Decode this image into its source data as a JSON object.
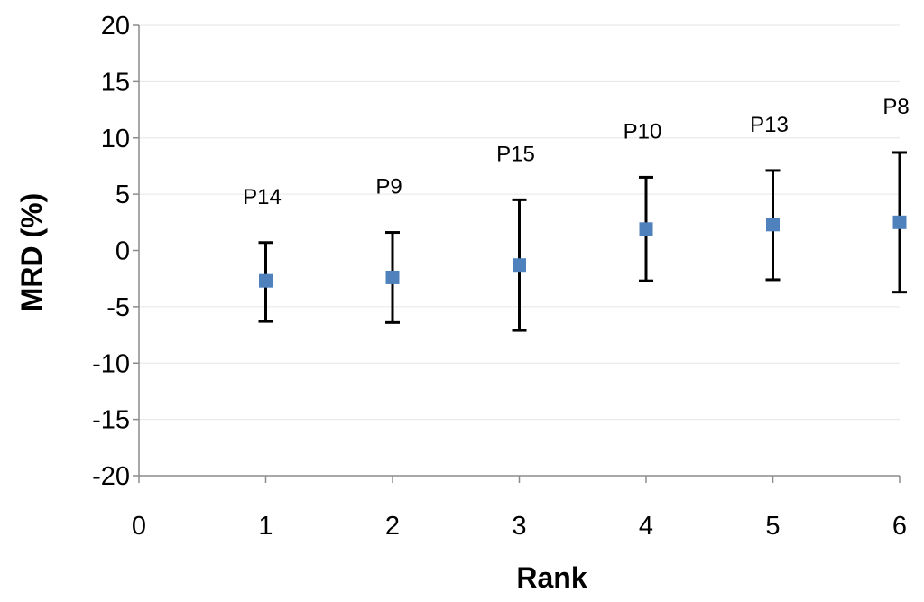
{
  "chart_data": {
    "type": "scatter",
    "title": "",
    "xlabel": "Rank",
    "ylabel": "MRD (%)",
    "xlim": [
      0,
      6
    ],
    "ylim": [
      -20,
      20
    ],
    "xticks": [
      0,
      1,
      2,
      3,
      4,
      5,
      6
    ],
    "yticks": [
      -20,
      -15,
      -10,
      -5,
      0,
      5,
      10,
      15,
      20
    ],
    "gridlines": "horizontal",
    "marker_color": "#4f81bd",
    "errorbar_color": "#000000",
    "points": [
      {
        "label": "P14",
        "x": 1,
        "y": -2.7,
        "lower": -6.3,
        "upper": 0.7
      },
      {
        "label": "P9",
        "x": 2,
        "y": -2.4,
        "lower": -6.4,
        "upper": 1.6
      },
      {
        "label": "P15",
        "x": 3,
        "y": -1.3,
        "lower": -7.1,
        "upper": 4.5
      },
      {
        "label": "P10",
        "x": 4,
        "y": 1.9,
        "lower": -2.7,
        "upper": 6.5
      },
      {
        "label": "P13",
        "x": 5,
        "y": 2.3,
        "lower": -2.6,
        "upper": 7.1
      },
      {
        "label": "P8",
        "x": 6,
        "y": 2.5,
        "lower": -3.7,
        "upper": 8.7
      }
    ]
  }
}
